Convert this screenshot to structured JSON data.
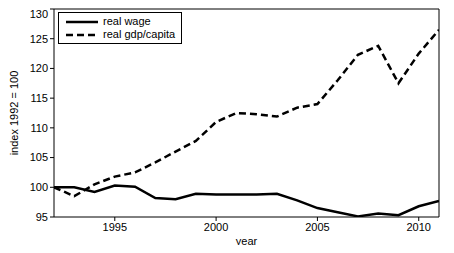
{
  "chart_data": {
    "type": "line",
    "xlabel": "year",
    "ylabel": "index 1992 = 100",
    "x": [
      1992,
      1993,
      1994,
      1995,
      1996,
      1997,
      1998,
      1999,
      2000,
      2001,
      2002,
      2003,
      2004,
      2005,
      2006,
      2007,
      2008,
      2009,
      2010,
      2011
    ],
    "series": [
      {
        "name": "real wage",
        "color": "#000000",
        "line_style": "solid",
        "values": [
          100,
          100,
          99.2,
          100.3,
          100.1,
          98.2,
          98.0,
          98.9,
          98.8,
          98.8,
          98.8,
          98.9,
          97.8,
          96.5,
          95.8,
          95.1,
          95.6,
          95.3,
          96.8,
          97.7
        ]
      },
      {
        "name": "real gdp/capita",
        "color": "#000000",
        "line_style": "dashed",
        "values": [
          100,
          98.5,
          100.5,
          101.8,
          102.5,
          104.2,
          106,
          107.8,
          111,
          112.5,
          112.3,
          111.9,
          113.4,
          114,
          118,
          122.3,
          123.8,
          117.5,
          122.5,
          126.5
        ]
      }
    ],
    "xlim": [
      1992,
      2011
    ],
    "xticks": [
      1995,
      2000,
      2005,
      2010
    ],
    "ylim": [
      95,
      130
    ],
    "yticks": [
      95,
      100,
      105,
      110,
      115,
      120,
      125,
      130
    ],
    "legend": "upper left",
    "grid": false
  }
}
